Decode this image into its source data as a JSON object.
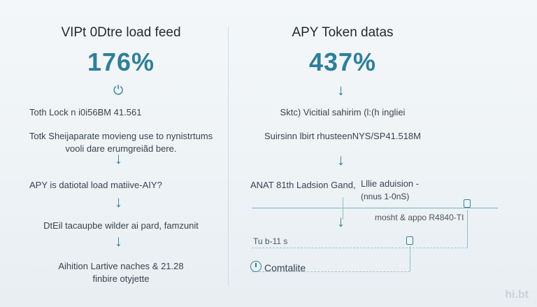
{
  "left": {
    "title": "VIPt 0Dtre load feed",
    "big_value": "176%",
    "line1": "Toth Lock n i0i56BM 41.561",
    "line2a": "Totk Sheijaparate movieng use to nynistrtums",
    "line2b": "vooli dare erumgreiãd bere.",
    "line3": "APY is datiotal load matiive-AIY?",
    "line4": "DtEil tacaupbe wilder ai pard, famzunit",
    "line5a": "Aihition Lartive naches & 21.28",
    "line5b": "finbire otyjette"
  },
  "right": {
    "title": "APY Token datas",
    "big_value": "437%",
    "line1": "Sktc) Vicitial sahirim (l:(h ingliei",
    "line2": "Suirsinn lbirt rhusteenNYS/SP41.518M",
    "line3a": "ANAT 81th Ladsion Gand,",
    "line3b": "Lllie aduision -",
    "line3c": "(nnus 1-0nS)",
    "line4": "mosht & appo R4840-TI",
    "line5": "Tu b-11 s",
    "footer_label": "Comtalite"
  },
  "watermark": "hi.bt",
  "colors": {
    "accent": "#2f7f99",
    "text": "#39444e"
  }
}
